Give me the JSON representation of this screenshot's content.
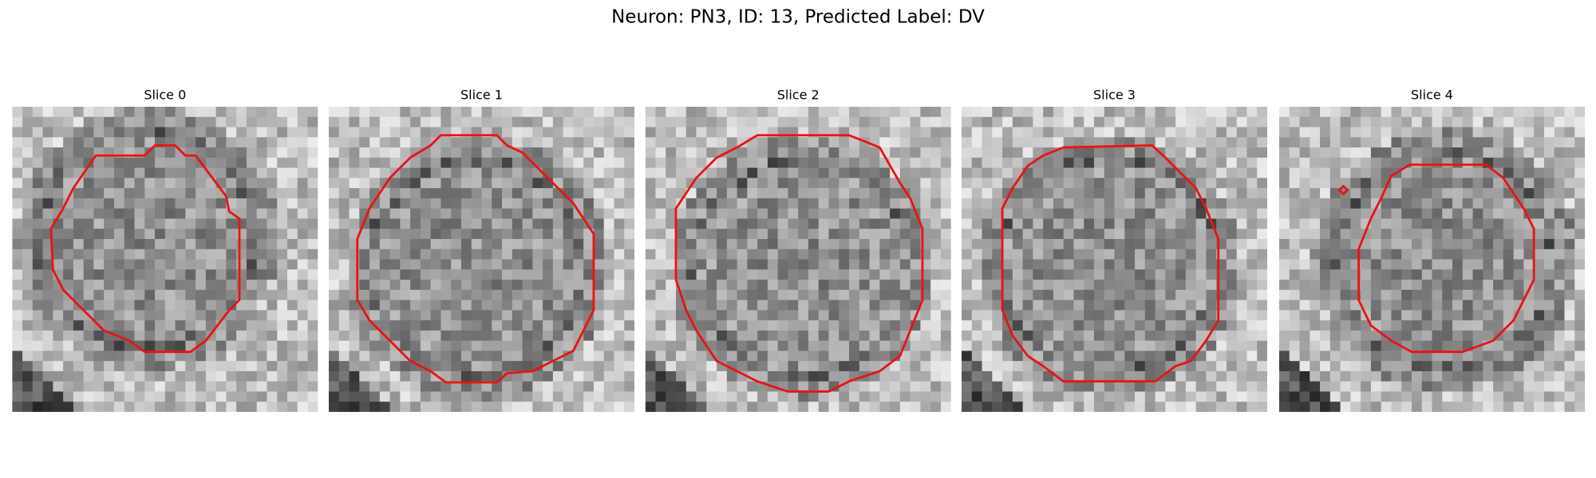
{
  "title": "Neuron: PN3, ID: 13, Predicted Label: DV",
  "panels": [
    {
      "title": "Slice 0"
    },
    {
      "title": "Slice 1"
    },
    {
      "title": "Slice 2"
    },
    {
      "title": "Slice 3"
    },
    {
      "title": "Slice 4"
    }
  ]
}
